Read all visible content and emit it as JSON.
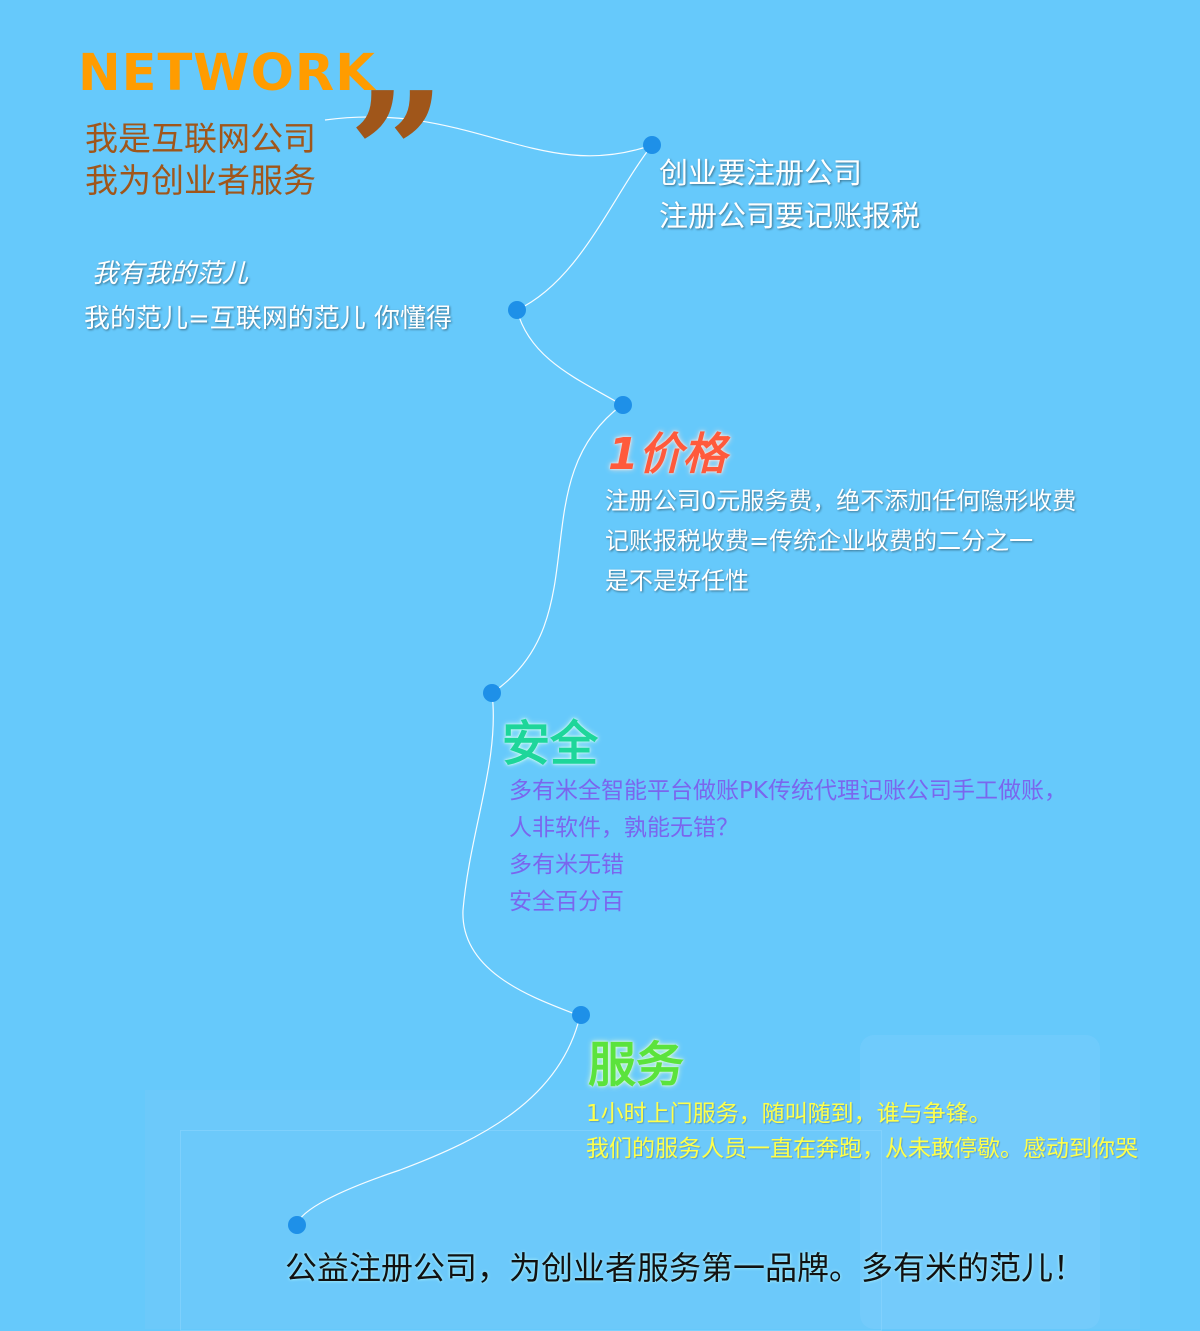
{
  "header": {
    "brand": "NETWORK",
    "tagline_1": "我是互联网公司",
    "tagline_2": "我为创业者服务"
  },
  "intro": {
    "line_1": "创业要注册公司",
    "line_2": "注册公司要记账报税"
  },
  "claim": {
    "line_1": "我有我的范儿",
    "line_2": "我的范儿=互联网的范儿 你懂得"
  },
  "price": {
    "title": "价格",
    "line_1": "注册公司0元服务费，绝不添加任何隐形收费",
    "line_2": "记账报税收费=传统企业收费的二分之一",
    "line_3": "是不是好任性"
  },
  "safety": {
    "title": "安全",
    "line_1": "多有米全智能平台做账PK传统代理记账公司手工做账，",
    "line_2": "人非软件，孰能无错？",
    "line_3": "多有米无错",
    "line_4": "安全百分百"
  },
  "service": {
    "title": "服务",
    "line_1": "1小时上门服务，随叫随到，谁与争锋。",
    "line_2": "我们的服务人员一直在奔跑，从未敢停歇。感动到你哭"
  },
  "footer": {
    "slogan": "公益注册公司，为创业者服务第一品牌。多有米的范儿！"
  },
  "colors": {
    "background": "#66c9fb",
    "brand": "#ff9c00",
    "tagline": "#a0561a",
    "dot": "#1e90e8"
  }
}
